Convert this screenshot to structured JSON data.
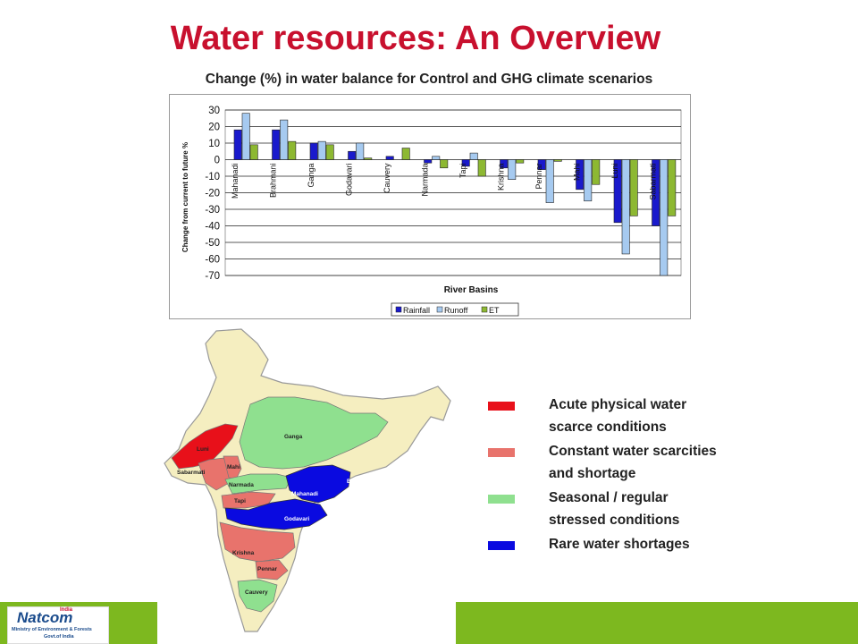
{
  "page": {
    "title": "Water resources: An Overview",
    "subtitle": "Change (%) in water balance for Control and GHG climate scenarios"
  },
  "chart_data": {
    "type": "bar",
    "categories": [
      "Mahanadi",
      "Brahmani",
      "Ganga",
      "Godavari",
      "Cauvery",
      "Narmada",
      "Tapi",
      "Krishna",
      "Pennar",
      "Mahi",
      "Luni",
      "Sabarmati"
    ],
    "series": [
      {
        "name": "Rainfall",
        "color": "#1a1acc",
        "values": [
          18,
          18,
          10,
          5,
          2,
          -2,
          -4,
          -5,
          -6,
          -18,
          -38,
          -40
        ]
      },
      {
        "name": "Runoff",
        "color": "#a6caf0",
        "values": [
          28,
          24,
          11,
          10,
          0,
          2,
          4,
          -12,
          -26,
          -25,
          -57,
          -70
        ]
      },
      {
        "name": "ET",
        "color": "#8db832",
        "values": [
          9,
          11,
          9,
          1,
          7,
          -5,
          -10,
          -2,
          -1,
          -15,
          -34,
          -34
        ]
      }
    ],
    "xlabel": "River Basins",
    "ylabel": "Change from current to future %",
    "ylim": [
      -70,
      30
    ],
    "yticks": [
      30,
      20,
      10,
      0,
      -10,
      -20,
      -30,
      -40,
      -50,
      -60,
      -70
    ],
    "grid": true,
    "legend": "bottom"
  },
  "map": {
    "labels": [
      "Luni",
      "Sabarmati",
      "Ganga",
      "Narmada",
      "Brahmani",
      "Mahanadi",
      "Tapi",
      "Godavari",
      "Krishna",
      "Pennar",
      "Cauvery",
      "Mahi"
    ]
  },
  "legend": {
    "items": [
      {
        "label": "Acute physical water scarce conditions",
        "color": "#e8101a"
      },
      {
        "label": "Constant water scarcities and shortage",
        "color": "#e8736c"
      },
      {
        "label": "Seasonal / regular stressed conditions",
        "color": "#8fe08f"
      },
      {
        "label": "Rare water shortages",
        "color": "#0a0ae0"
      }
    ]
  },
  "logo": {
    "name": "Natcom",
    "tag": "India",
    "line1": "Ministry of Environment & Forests",
    "line2": "Govt.of India"
  },
  "colors": {
    "title": "#c8102e",
    "footer": "#7db81f",
    "map_base": "#f5eec0",
    "map_outline": "#999999"
  }
}
